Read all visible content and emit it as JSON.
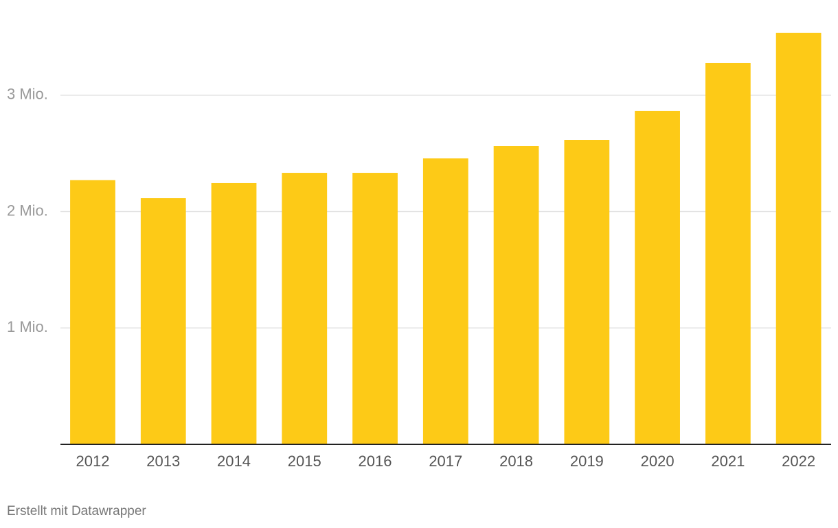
{
  "chart_data": {
    "type": "bar",
    "categories": [
      "2012",
      "2013",
      "2014",
      "2015",
      "2016",
      "2017",
      "2018",
      "2019",
      "2020",
      "2021",
      "2022"
    ],
    "values": [
      2.27,
      2.115,
      2.245,
      2.333,
      2.333,
      2.457,
      2.563,
      2.616,
      2.864,
      3.276,
      3.536
    ],
    "color": "#fdca17",
    "ylim": [
      0,
      3.6
    ],
    "yticks": [
      {
        "value": 1,
        "label": "1 Mio."
      },
      {
        "value": 2,
        "label": "2 Mio."
      },
      {
        "value": 3,
        "label": "3 Mio."
      }
    ],
    "grid": true,
    "credit": "Erstellt mit Datawrapper"
  }
}
